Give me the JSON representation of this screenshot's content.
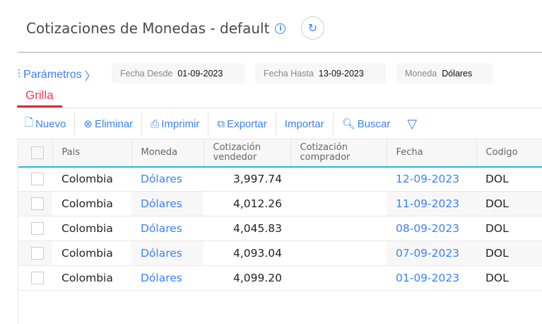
{
  "header": {
    "title": "Cotizaciones de Monedas - default",
    "info_icon": "info-icon",
    "refresh_icon": "refresh-icon"
  },
  "params": {
    "label": "Parámetros",
    "filters": [
      {
        "label": "Fecha Desde",
        "value": "01-09-2023"
      },
      {
        "label": "Fecha Hasta",
        "value": "13-09-2023"
      },
      {
        "label": "Moneda",
        "value": "Dólares"
      }
    ]
  },
  "tabs": [
    {
      "label": "Grilla",
      "active": true
    }
  ],
  "toolbar": {
    "nuevo": "Nuevo",
    "eliminar": "Eliminar",
    "imprimir": "Imprimir",
    "exportar": "Exportar",
    "importar": "Importar",
    "buscar": "Buscar"
  },
  "table": {
    "columns": [
      "Pais",
      "Moneda",
      "Cotización vendedor",
      "Cotización comprador",
      "Fecha",
      "Codigo"
    ],
    "rows": [
      {
        "pais": "Colombia",
        "moneda": "Dólares",
        "vendedor": "3,997.74",
        "comprador": "",
        "fecha": "12-09-2023",
        "codigo": "DOL"
      },
      {
        "pais": "Colombia",
        "moneda": "Dólares",
        "vendedor": "4,012.26",
        "comprador": "",
        "fecha": "11-09-2023",
        "codigo": "DOL"
      },
      {
        "pais": "Colombia",
        "moneda": "Dólares",
        "vendedor": "4,045.83",
        "comprador": "",
        "fecha": "08-09-2023",
        "codigo": "DOL"
      },
      {
        "pais": "Colombia",
        "moneda": "Dólares",
        "vendedor": "4,093.04",
        "comprador": "",
        "fecha": "07-09-2023",
        "codigo": "DOL"
      },
      {
        "pais": "Colombia",
        "moneda": "Dólares",
        "vendedor": "4,099.20",
        "comprador": "",
        "fecha": "01-09-2023",
        "codigo": "DOL"
      }
    ]
  },
  "colors": {
    "accent": "#3b82f6",
    "tab_active": "#e02a3a",
    "header_line": "#29b6e6"
  }
}
